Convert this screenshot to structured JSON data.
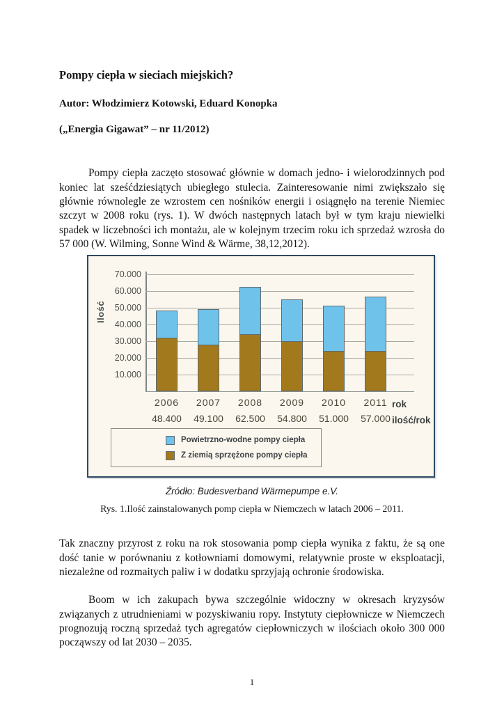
{
  "page": {
    "title": "Pompy ciepła w sieciach miejskich?",
    "author_line": "Autor: Włodzimierz Kotowski, Eduard Konopka",
    "journal_line": "(„Energia Gigawat” – nr 11/2012)",
    "paragraph1": "Pompy ciepła zaczęto stosować głównie w domach jedno- i wielorodzinnych pod koniec lat sześćdziesiątych ubiegłego stulecia. Zainteresowanie nimi zwiększało się głównie równolegle ze wzrostem cen nośników energii i osiągnęło na terenie Niemiec szczyt w 2008 roku (rys. 1). W dwóch następnych latach był w tym kraju niewielki spadek w liczebności ich montażu, ale w kolejnym trzecim roku ich sprzedaż wzrosła do 57 000 (W. Wilming, Sonne Wind & Wärme, 38,12,2012).",
    "figure_source": "Źródło: Budesverband Wärmepumpe e.V.",
    "figure_caption": "Rys. 1.Ilość zainstalowanych pomp ciepła w Niemczech w latach 2006 – 2011.",
    "paragraph2": "Tak znaczny przyrost z roku na rok stosowania pomp ciepła wynika z faktu, że są one dość tanie w porównaniu z kotłowniami domowymi, relatywnie proste w eksploatacji, niezależne od rozmaitych paliw i w dodatku sprzyjają ochronie środowiska.",
    "paragraph3": "Boom w ich zakupach bywa szczególnie widoczny w okresach kryzysów związanych z utrudnieniami w pozyskiwaniu ropy. Instytuty ciepłownicze w Niemczech prognozują roczną sprzedaż tych agregatów ciepłowniczych w ilościach około 300 000 począwszy od lat 2030 – 2035.",
    "page_number": "1"
  },
  "chart_data": {
    "type": "bar",
    "stacked": true,
    "title": "",
    "ylabel": "Ilość",
    "right_labels": [
      "rok",
      "ilość/rok"
    ],
    "categories": [
      "2006",
      "2007",
      "2008",
      "2009",
      "2010",
      "2011"
    ],
    "totals": [
      48400,
      49100,
      62500,
      54800,
      51000,
      57000
    ],
    "totals_labels": [
      "48.400",
      "49.100",
      "62.500",
      "54.800",
      "51.000",
      "57.000"
    ],
    "y_ticks": [
      "70.000",
      "60.000",
      "50.000",
      "40.000",
      "30.000",
      "20.000",
      "10.000"
    ],
    "ylim": [
      0,
      70000
    ],
    "grid": true,
    "legend_position": "bottom-left-box",
    "series": [
      {
        "name": "Powietrzno-wodne pompy ciepła",
        "color": "#6fc2ea",
        "values": [
          16400,
          21300,
          28500,
          24800,
          27000,
          32700
        ]
      },
      {
        "name": "Z ziemią sprzężone pompy ciepła",
        "color": "#a3791e",
        "values": [
          32000,
          27800,
          34000,
          30000,
          24000,
          24300
        ]
      }
    ]
  },
  "colors": {
    "figure_border": "#2e4a63",
    "figure_background": "#fbf7ef",
    "gridline": "#a7a9a1",
    "bar_outline": "#5d6a70",
    "air_water_blue": "#6fc2ea",
    "ground_coupled_brown": "#a3791e"
  }
}
